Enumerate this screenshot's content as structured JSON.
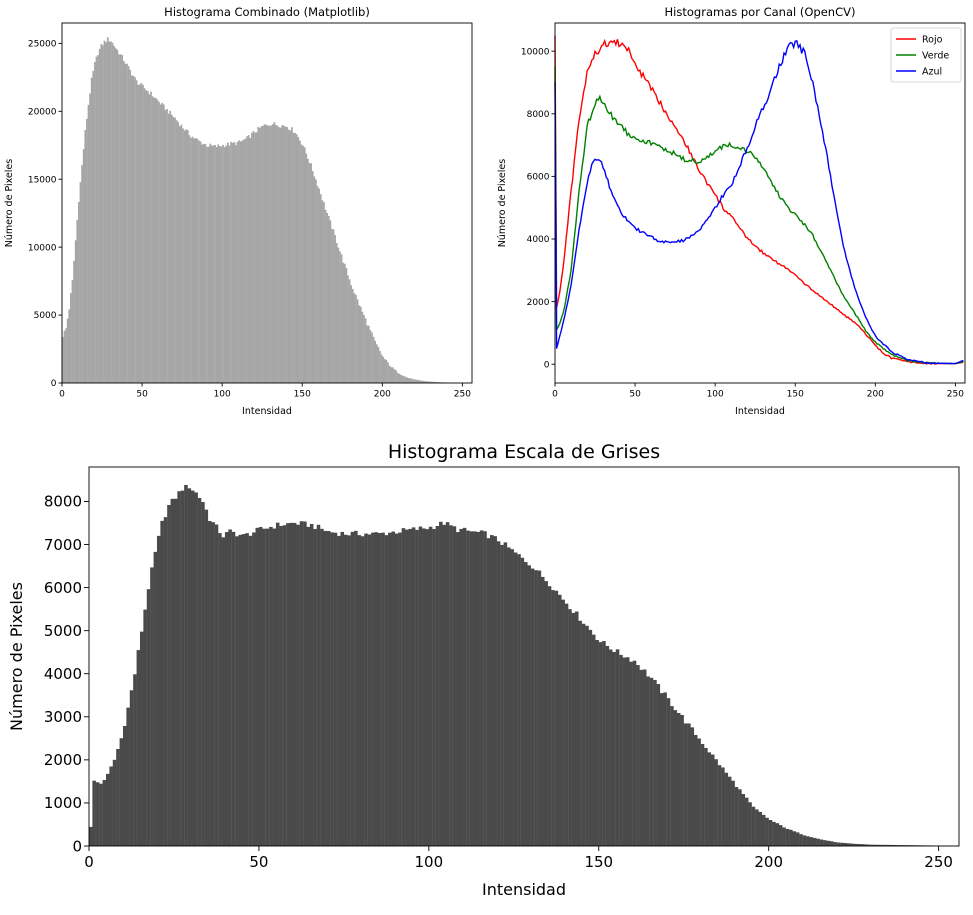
{
  "figure": {
    "top_left_title": "Histograma Combinado (Matplotlib)",
    "top_right_title": "Histogramas por Canal (OpenCV)",
    "bottom_title": "Histograma Escala de Grises"
  },
  "chart_data": [
    {
      "type": "bar",
      "title": "Histograma Combinado (Matplotlib)",
      "xlabel": "Intensidad",
      "ylabel": "Número de Pixeles",
      "xlim": [
        0,
        256
      ],
      "ylim": [
        0,
        26500
      ],
      "xticks": [
        0,
        50,
        100,
        150,
        200,
        250
      ],
      "yticks": [
        0,
        5000,
        10000,
        15000,
        20000,
        25000
      ],
      "color": "#a6a6a6",
      "bin_width": 1,
      "x": [
        0,
        2,
        4,
        6,
        8,
        10,
        12,
        14,
        16,
        18,
        20,
        22,
        24,
        26,
        28,
        30,
        34,
        38,
        42,
        46,
        50,
        55,
        60,
        65,
        70,
        75,
        80,
        85,
        90,
        95,
        100,
        105,
        110,
        115,
        120,
        125,
        130,
        135,
        140,
        145,
        150,
        155,
        160,
        165,
        170,
        175,
        180,
        185,
        190,
        195,
        200,
        205,
        210,
        215,
        220,
        225,
        230,
        235,
        240,
        245,
        250,
        255
      ],
      "values": [
        3500,
        4000,
        5500,
        7500,
        10500,
        13500,
        16000,
        18500,
        20500,
        22300,
        23500,
        24300,
        24800,
        25100,
        25300,
        25200,
        24500,
        23800,
        23000,
        22200,
        21800,
        21300,
        20700,
        20100,
        19500,
        18800,
        18200,
        17800,
        17500,
        17400,
        17500,
        17600,
        17700,
        18000,
        18500,
        18900,
        19100,
        19000,
        18900,
        18500,
        17500,
        16000,
        14300,
        12500,
        10800,
        9000,
        7300,
        5800,
        4400,
        3000,
        1900,
        1200,
        700,
        400,
        250,
        150,
        100,
        60,
        40,
        20,
        10,
        5
      ]
    },
    {
      "type": "line",
      "title": "Histogramas por Canal (OpenCV)",
      "xlabel": "Intensidad",
      "ylabel": "Número de Pixeles",
      "xlim": [
        0,
        256
      ],
      "ylim": [
        -600,
        10900
      ],
      "xticks": [
        0,
        50,
        100,
        150,
        200,
        250
      ],
      "yticks": [
        0,
        2000,
        4000,
        6000,
        8000,
        10000
      ],
      "legend": "top-right",
      "series": [
        {
          "name": "Rojo",
          "color": "#ff0000",
          "x": [
            0,
            1,
            3,
            6,
            10,
            15,
            20,
            25,
            30,
            35,
            40,
            45,
            50,
            55,
            60,
            65,
            70,
            75,
            80,
            85,
            90,
            95,
            100,
            105,
            110,
            115,
            120,
            125,
            130,
            135,
            140,
            145,
            150,
            155,
            160,
            165,
            170,
            175,
            180,
            185,
            190,
            195,
            200,
            205,
            210,
            220,
            230,
            240,
            250,
            255
          ],
          "values": [
            10500,
            1800,
            2300,
            3500,
            5500,
            7800,
            9300,
            9900,
            10200,
            10300,
            10250,
            10100,
            9600,
            9200,
            8800,
            8400,
            8000,
            7600,
            7200,
            6700,
            6200,
            5800,
            5400,
            5000,
            4700,
            4400,
            4000,
            3800,
            3550,
            3400,
            3200,
            3050,
            2850,
            2600,
            2400,
            2200,
            2000,
            1800,
            1600,
            1400,
            1200,
            900,
            600,
            350,
            200,
            80,
            30,
            20,
            20,
            60
          ]
        },
        {
          "name": "Verde",
          "color": "#008000",
          "x": [
            0,
            1,
            3,
            6,
            10,
            15,
            20,
            25,
            28,
            30,
            33,
            36,
            40,
            45,
            50,
            55,
            60,
            65,
            70,
            75,
            80,
            85,
            90,
            95,
            100,
            105,
            110,
            115,
            120,
            125,
            130,
            135,
            140,
            145,
            150,
            155,
            160,
            165,
            170,
            175,
            180,
            185,
            190,
            195,
            200,
            210,
            220,
            230,
            240,
            250,
            255
          ],
          "values": [
            9500,
            1100,
            1300,
            1800,
            3000,
            5500,
            7600,
            8300,
            8500,
            8400,
            8100,
            7900,
            7700,
            7400,
            7250,
            7150,
            7050,
            6950,
            6850,
            6700,
            6550,
            6500,
            6450,
            6600,
            6800,
            6950,
            7000,
            6950,
            6800,
            6600,
            6300,
            5800,
            5400,
            5000,
            4800,
            4500,
            4200,
            3700,
            3200,
            2700,
            2200,
            1800,
            1400,
            1000,
            700,
            300,
            120,
            50,
            30,
            20,
            80
          ]
        },
        {
          "name": "Azul",
          "color": "#0000ff",
          "x": [
            0,
            1,
            3,
            6,
            10,
            15,
            20,
            24,
            27,
            30,
            34,
            38,
            42,
            46,
            50,
            55,
            60,
            65,
            70,
            75,
            80,
            85,
            90,
            95,
            100,
            105,
            110,
            115,
            120,
            125,
            130,
            135,
            140,
            145,
            148,
            152,
            156,
            160,
            165,
            170,
            175,
            180,
            185,
            190,
            195,
            200,
            210,
            220,
            230,
            240,
            250,
            255
          ],
          "values": [
            9000,
            500,
            900,
            1500,
            2500,
            4300,
            5800,
            6500,
            6600,
            6300,
            5700,
            5200,
            4800,
            4550,
            4350,
            4200,
            4050,
            3950,
            3900,
            3900,
            3950,
            4100,
            4300,
            4600,
            5000,
            5400,
            5700,
            6300,
            6900,
            7600,
            8200,
            8800,
            9500,
            10100,
            10250,
            10200,
            9900,
            9200,
            8000,
            6600,
            5100,
            3800,
            2800,
            2000,
            1400,
            900,
            400,
            150,
            60,
            30,
            20,
            120
          ]
        }
      ]
    },
    {
      "type": "bar",
      "title": "Histograma Escala de Grises",
      "xlabel": "Intensidad",
      "ylabel": "Número de Pixeles",
      "xlim": [
        0,
        256
      ],
      "ylim": [
        0,
        8800
      ],
      "xticks": [
        0,
        50,
        100,
        150,
        200,
        250
      ],
      "yticks": [
        0,
        1000,
        2000,
        3000,
        4000,
        5000,
        6000,
        7000,
        8000
      ],
      "color": "#4a4a4a",
      "bin_width": 1,
      "x": [
        0,
        1,
        3,
        5,
        7,
        9,
        11,
        13,
        15,
        17,
        19,
        21,
        23,
        25,
        27,
        29,
        31,
        33,
        35,
        37,
        39,
        41,
        45,
        50,
        55,
        60,
        65,
        70,
        75,
        80,
        85,
        90,
        95,
        100,
        104,
        108,
        112,
        116,
        120,
        125,
        130,
        135,
        140,
        145,
        150,
        155,
        160,
        165,
        170,
        175,
        180,
        185,
        190,
        195,
        200,
        205,
        210,
        215,
        220,
        225,
        230,
        240,
        250,
        255
      ],
      "values": [
        450,
        1500,
        1450,
        1650,
        2000,
        2500,
        3200,
        4000,
        5000,
        6000,
        6800,
        7500,
        7900,
        8100,
        8300,
        8350,
        8200,
        8000,
        7600,
        7400,
        7200,
        7300,
        7200,
        7350,
        7450,
        7500,
        7450,
        7300,
        7250,
        7250,
        7250,
        7300,
        7350,
        7400,
        7500,
        7350,
        7300,
        7250,
        7100,
        6800,
        6500,
        6100,
        5650,
        5200,
        4750,
        4500,
        4300,
        3900,
        3400,
        2900,
        2400,
        1900,
        1400,
        900,
        600,
        400,
        250,
        150,
        80,
        50,
        30,
        20,
        10,
        5
      ]
    }
  ]
}
